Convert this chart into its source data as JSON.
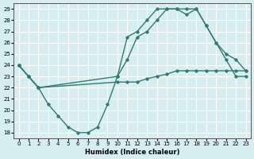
{
  "xlabel": "Humidex (Indice chaleur)",
  "xlim": [
    -0.5,
    23.5
  ],
  "ylim": [
    17.5,
    29.5
  ],
  "yticks": [
    18,
    19,
    20,
    21,
    22,
    23,
    24,
    25,
    26,
    27,
    28,
    29
  ],
  "xticks": [
    0,
    1,
    2,
    3,
    4,
    5,
    6,
    7,
    8,
    9,
    10,
    11,
    12,
    13,
    14,
    15,
    16,
    17,
    18,
    19,
    20,
    21,
    22,
    23
  ],
  "bg_color": "#d6eef0",
  "line_color": "#2e7d6e",
  "grid_color": "#ffffff",
  "line1_x": [
    0,
    1,
    2,
    3,
    4,
    5,
    6,
    7,
    8,
    9,
    10,
    11,
    12,
    13,
    14,
    15,
    16,
    17,
    18,
    19,
    20,
    21,
    22,
    23
  ],
  "line1_y": [
    24,
    23,
    22,
    20.5,
    19.5,
    18.5,
    18,
    18,
    18.5,
    20.5,
    23,
    24.5,
    26.5,
    27,
    28,
    29,
    29,
    29,
    29,
    27.5,
    26,
    24.5,
    23.0,
    23.0
  ],
  "line2_x": [
    0,
    1,
    2,
    10,
    11,
    12,
    13,
    14,
    15,
    16,
    17,
    18,
    19,
    20,
    21,
    22,
    23
  ],
  "line2_y": [
    24,
    23,
    22,
    23,
    26.5,
    27,
    28,
    29,
    29,
    29,
    28.5,
    29,
    27.5,
    26,
    25,
    24.5,
    23.5
  ],
  "line3_x": [
    0,
    1,
    2,
    10,
    11,
    12,
    13,
    14,
    15,
    16,
    17,
    18,
    19,
    20,
    21,
    22,
    23
  ],
  "line3_y": [
    24,
    23,
    22,
    22.5,
    22.5,
    22.5,
    22.8,
    23.0,
    23.2,
    23.5,
    23.5,
    23.5,
    23.5,
    23.5,
    23.5,
    23.5,
    23.5
  ]
}
